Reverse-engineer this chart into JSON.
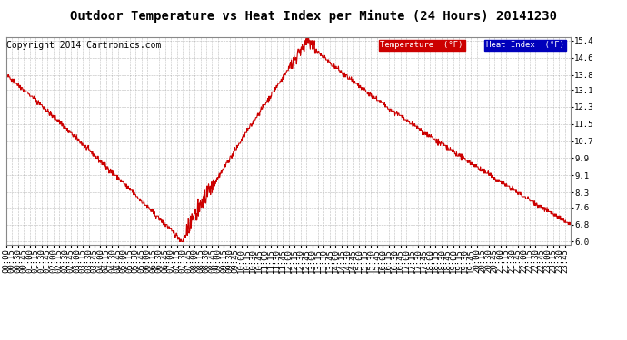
{
  "title": "Outdoor Temperature vs Heat Index per Minute (24 Hours) 20141230",
  "copyright": "Copyright 2014 Cartronics.com",
  "legend_labels": [
    "Heat Index  (°F)",
    "Temperature  (°F)"
  ],
  "legend_bg_colors": [
    "#0000bb",
    "#cc0000"
  ],
  "line_color": "#cc0000",
  "background_color": "#ffffff",
  "grid_color": "#aaaaaa",
  "yticks": [
    6.0,
    6.8,
    7.6,
    8.3,
    9.1,
    9.9,
    10.7,
    11.5,
    12.3,
    13.1,
    13.8,
    14.6,
    15.4
  ],
  "ylim": [
    5.85,
    15.55
  ],
  "title_fontsize": 10,
  "copyright_fontsize": 7,
  "tick_fontsize": 6.5
}
